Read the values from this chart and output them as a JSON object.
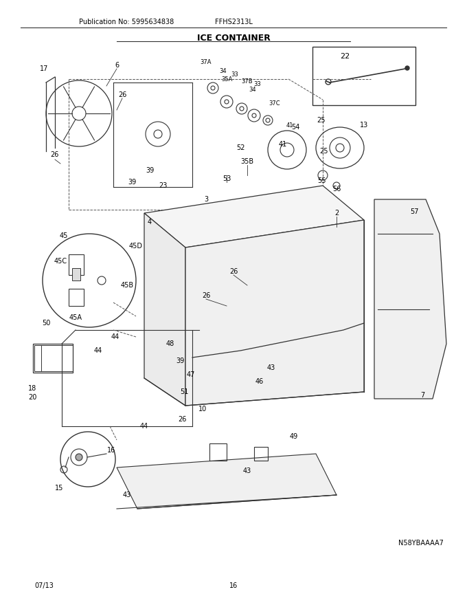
{
  "title": "ICE CONTAINER",
  "pub_no": "Publication No: 5995634838",
  "model": "FFHS2313L",
  "date": "07/13",
  "page": "16",
  "image_id": "N58YBAAAA7",
  "bg_color": "#ffffff",
  "line_color": "#333333",
  "fig_width": 6.8,
  "fig_height": 8.8,
  "dpi": 100
}
